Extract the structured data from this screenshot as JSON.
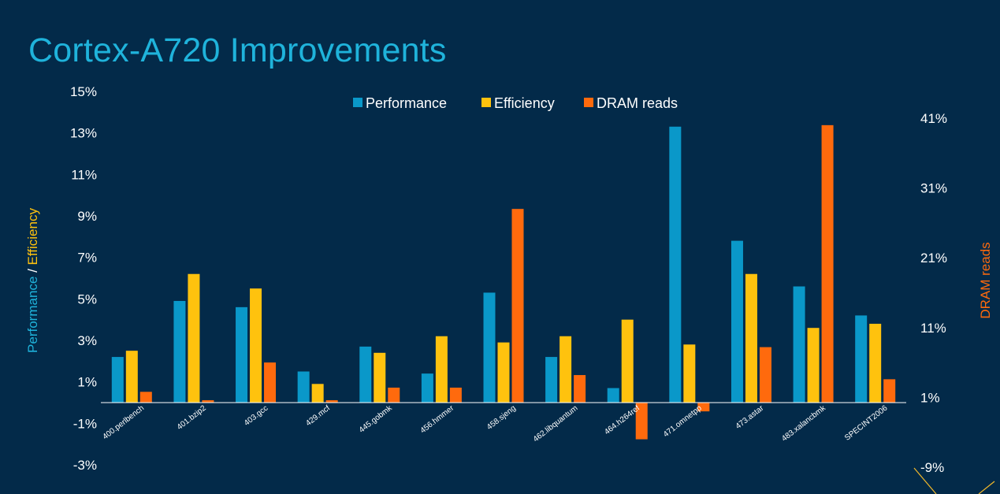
{
  "title": "Cortex-A720 Improvements",
  "colors": {
    "background": "#032a49",
    "title": "#1fb3db",
    "performance": "#0a98c9",
    "efficiency": "#ffc20e",
    "dram": "#ff6a0d",
    "axis": "#ffffff",
    "accent_line": "#f2b82a"
  },
  "axis_titles": {
    "left_part1": "Performance",
    "left_sep": " / ",
    "left_part2": "Efficiency",
    "right": "DRAM reads"
  },
  "chart_data": {
    "type": "bar",
    "title": "Cortex-A720 Improvements",
    "categories": [
      "400.perlbench",
      "401.bzip2",
      "403.gcc",
      "429.mcf",
      "445.gobmk",
      "456.hmmer",
      "458.sjeng",
      "462.libquantum",
      "464.h264ref",
      "471.omnetpp",
      "473.astar",
      "483.xalancbmk",
      "SPECINT2006"
    ],
    "left_axis": {
      "label": "Performance / Efficiency",
      "ticks": [
        "15%",
        "13%",
        "11%",
        "9%",
        "7%",
        "5%",
        "3%",
        "1%",
        "-1%",
        "-3%"
      ],
      "ylim": [
        -3,
        15
      ],
      "unit": "%"
    },
    "right_axis": {
      "label": "DRAM reads",
      "ticks": [
        "41%",
        "31%",
        "21%",
        "11%",
        "1%",
        "-9%"
      ],
      "ylim": [
        -9,
        41
      ],
      "unit": "%"
    },
    "legend": {
      "placement": "top-center",
      "entries": [
        "Performance",
        "Efficiency",
        "DRAM reads"
      ]
    },
    "grid": false,
    "series": [
      {
        "name": "Performance",
        "axis": "left",
        "color": "#0a98c9",
        "values": [
          2.2,
          4.9,
          4.6,
          1.5,
          2.7,
          1.4,
          5.3,
          2.2,
          0.7,
          13.3,
          7.8,
          5.6,
          4.2
        ]
      },
      {
        "name": "Efficiency",
        "axis": "left",
        "color": "#ffc20e",
        "values": [
          2.5,
          6.2,
          5.5,
          0.9,
          2.4,
          3.2,
          2.9,
          3.2,
          4.0,
          2.8,
          6.2,
          3.6,
          3.8
        ]
      },
      {
        "name": "DRAM reads",
        "axis": "right",
        "color": "#ff6a0d",
        "values": [
          1.8,
          0.6,
          6.0,
          0.6,
          2.4,
          2.4,
          28.0,
          4.2,
          -5.0,
          -1.0,
          8.2,
          40.0,
          3.6
        ]
      }
    ]
  }
}
